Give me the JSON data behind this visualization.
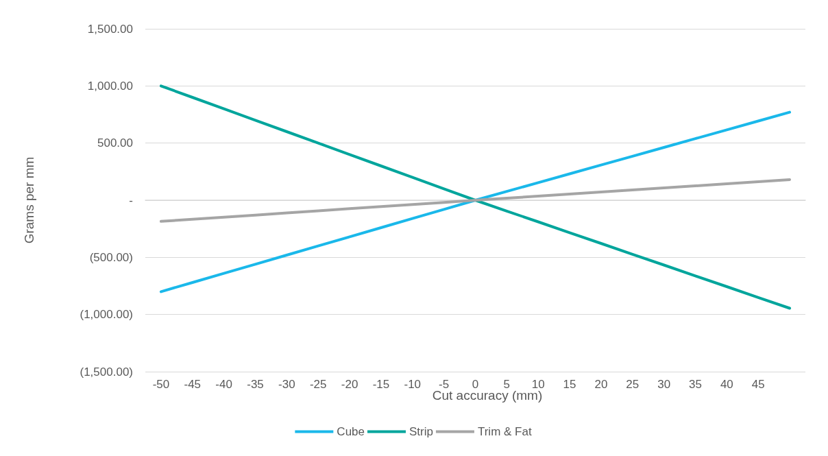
{
  "chart_data": {
    "type": "line",
    "xlabel": "Cut accuracy (mm)",
    "ylabel": "Grams per mm",
    "categories": [
      "-50",
      "-45",
      "-40",
      "-35",
      "-30",
      "-25",
      "-20",
      "-15",
      "-10",
      "-5",
      "0",
      "5",
      "10",
      "15",
      "20",
      "25",
      "30",
      "35",
      "40",
      "45",
      null
    ],
    "series": [
      {
        "name": "Cube",
        "color": "#1ab8ea",
        "values": [
          -800,
          -720,
          -640,
          -560,
          -480,
          -400,
          -320,
          -240,
          -160,
          -80,
          0,
          77,
          154,
          231,
          308,
          385,
          462,
          539,
          616,
          693,
          770
        ]
      },
      {
        "name": "Strip",
        "color": "#00a59c",
        "values": [
          1000,
          900,
          800,
          700,
          600,
          500,
          400,
          300,
          200,
          100,
          0,
          -95,
          -189,
          -284,
          -378,
          -473,
          -567,
          -662,
          -756,
          -851,
          -945
        ]
      },
      {
        "name": "Trim & Fat",
        "color": "#a5a5a5",
        "values": [
          -185,
          -167,
          -148,
          -130,
          -111,
          -93,
          -74,
          -56,
          -37,
          -19,
          0,
          18,
          36,
          54,
          72,
          90,
          108,
          126,
          144,
          162,
          180
        ]
      }
    ],
    "ylim": [
      -1500,
      1500
    ],
    "yticks": [
      {
        "value": -1500,
        "label": "(1,500.00)"
      },
      {
        "value": -1000,
        "label": "(1,000.00)"
      },
      {
        "value": -500,
        "label": "(500.00)"
      },
      {
        "value": 0,
        "label": "-"
      },
      {
        "value": 500,
        "label": "500.00"
      },
      {
        "value": 1000,
        "label": "1,000.00"
      },
      {
        "value": 1500,
        "label": "1,500.00"
      }
    ],
    "grid": "y",
    "legend": "bottom",
    "marker": "none",
    "line_style": "solid"
  }
}
